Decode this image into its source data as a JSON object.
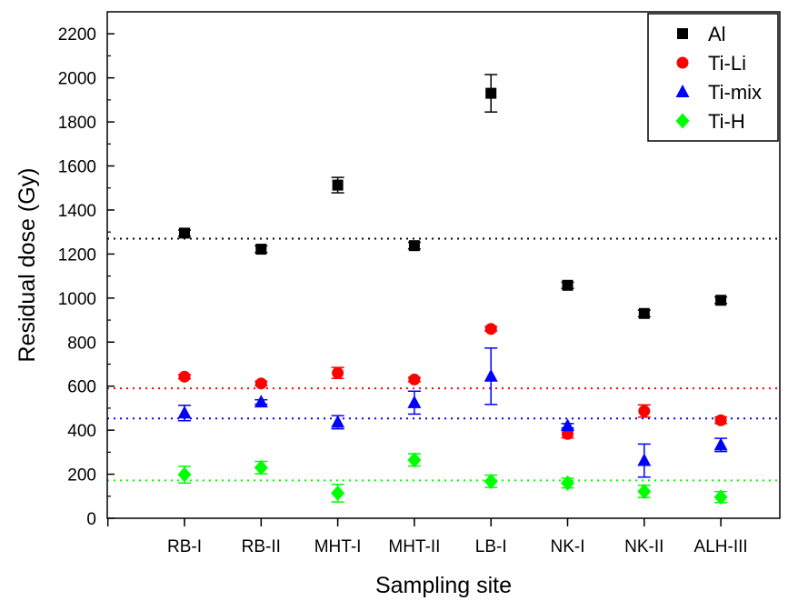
{
  "chart_data": {
    "type": "scatter",
    "xlabel": "Sampling site",
    "ylabel": "Residual dose (Gy)",
    "categories": [
      "RB-I",
      "RB-II",
      "MHT-I",
      "MHT-II",
      "LB-I",
      "NK-I",
      "NK-II",
      "ALH-III"
    ],
    "ylim": [
      0,
      2300
    ],
    "yticks": [
      0,
      200,
      400,
      600,
      800,
      1000,
      1200,
      1400,
      1600,
      1800,
      2000,
      2200
    ],
    "legend_position": "top-right",
    "series": [
      {
        "name": "Al",
        "color": "#000000",
        "marker": "square",
        "values": [
          1295,
          1222,
          1513,
          1238,
          1930,
          1058,
          930,
          990
        ],
        "errors": [
          14,
          15,
          35,
          15,
          85,
          14,
          15,
          15
        ],
        "reference_line": 1270
      },
      {
        "name": "Ti-Li",
        "color": "#ff0000",
        "marker": "circle",
        "values": [
          643,
          612,
          660,
          630,
          860,
          383,
          487,
          445
        ],
        "errors": [
          10,
          10,
          25,
          10,
          10,
          18,
          28,
          15
        ],
        "reference_line": 590
      },
      {
        "name": "Ti-mix",
        "color": "#0000ff",
        "marker": "triangle",
        "values": [
          478,
          528,
          436,
          525,
          645,
          420,
          262,
          333
        ],
        "errors": [
          35,
          10,
          30,
          52,
          128,
          10,
          75,
          30
        ],
        "reference_line": 453
      },
      {
        "name": "Ti-H",
        "color": "#00ff00",
        "marker": "diamond",
        "values": [
          198,
          230,
          114,
          265,
          168,
          160,
          122,
          96
        ],
        "errors": [
          38,
          28,
          40,
          28,
          28,
          22,
          28,
          25
        ],
        "reference_line": 172
      }
    ]
  }
}
